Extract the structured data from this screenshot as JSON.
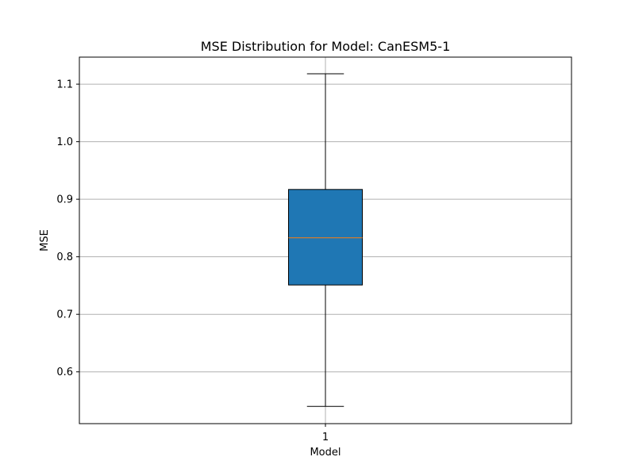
{
  "chart_data": {
    "type": "box",
    "title": "MSE Distribution for Model: CanESM5-1",
    "xlabel": "Model",
    "ylabel": "MSE",
    "categories": [
      "1"
    ],
    "ylim": [
      0.51,
      1.147
    ],
    "yticks": [
      0.6,
      0.7,
      0.8,
      0.9,
      1.0,
      1.1
    ],
    "ytick_labels": [
      "0.6",
      "0.7",
      "0.8",
      "0.9",
      "1.0",
      "1.1"
    ],
    "grid": true,
    "boxes": [
      {
        "category": "1",
        "whisker_low": 0.54,
        "q1": 0.751,
        "median": 0.833,
        "q3": 0.917,
        "whisker_high": 1.118
      }
    ],
    "colors": {
      "box_fill": "#1f77b4",
      "median": "#ff7f0e",
      "line": "#000000",
      "grid": "#b0b0b0"
    }
  }
}
